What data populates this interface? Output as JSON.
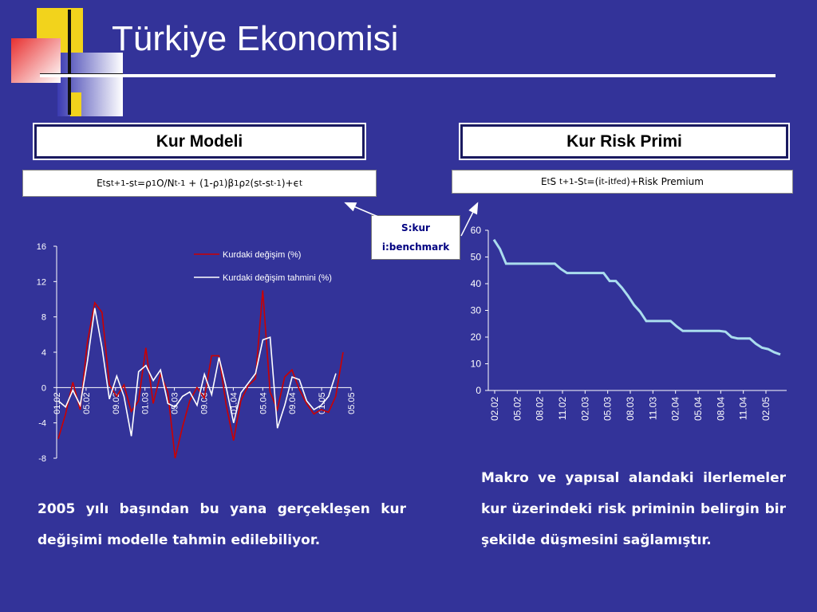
{
  "title": "Türkiye Ekonomisi",
  "left_box": {
    "label": "Kur Modeli"
  },
  "right_box": {
    "label": "Kur Risk Primi"
  },
  "note": {
    "line1": "S:kur",
    "line2": "i:benchmark"
  },
  "left_text": "2005 yılı başından bu yana gerçekleşen kur değişimi modelle tahmin edilebiliyor.",
  "right_text": "Makro ve yapısal alandaki ilerlemeler kur üzerindeki risk priminin belirgin bir şekilde düşmesini sağlamıştır.",
  "chart_data": [
    {
      "type": "line",
      "ylim": [
        -8,
        16
      ],
      "yticks": [
        -8,
        -4,
        0,
        4,
        8,
        12,
        16
      ],
      "x_tick_labels": [
        "01.02",
        "05.02",
        "09.02",
        "01.03",
        "05.03",
        "09.03",
        "01.04",
        "05.04",
        "09.04",
        "01.05",
        "05.05"
      ],
      "legend_position": "top-right",
      "series": [
        {
          "name": "Kurdaki değişim (%)",
          "color": "#cc0000",
          "values": [
            -5.8,
            -3.0,
            0.6,
            -2.5,
            5.2,
            9.6,
            8.5,
            0.3,
            -1.0,
            0.3,
            -2.7,
            -1.5,
            4.5,
            -1.8,
            1.5,
            -0.5,
            -8.0,
            -4.5,
            -1.5,
            0.0,
            -1.2,
            3.6,
            3.6,
            -2.0,
            -6.0,
            -1.5,
            0.2,
            1.0,
            11.0,
            -0.5,
            -2.5,
            1.2,
            2.0,
            -0.2,
            -1.8,
            -3.0,
            -2.5,
            -2.8,
            -1.0,
            4.0
          ]
        },
        {
          "name": "Kurdaki değişim tahmini (%)",
          "color": "#ffffff",
          "values": [
            -1.5,
            -2.2,
            -0.3,
            -2.0,
            3.0,
            9.0,
            4.5,
            -1.3,
            1.3,
            -1.0,
            -5.5,
            1.8,
            2.5,
            0.8,
            2.0,
            -1.8,
            -2.2,
            -1.0,
            -0.5,
            -2.0,
            1.5,
            -0.8,
            3.4,
            0.0,
            -4.0,
            -0.6,
            0.5,
            1.6,
            5.4,
            5.7,
            -4.6,
            -2.0,
            1.2,
            0.9,
            -1.5,
            -2.5,
            -2.0,
            -1.0,
            1.6
          ]
        }
      ]
    },
    {
      "type": "line",
      "ylim": [
        0,
        60
      ],
      "yticks": [
        0,
        10,
        20,
        30,
        40,
        50,
        60
      ],
      "x_tick_labels": [
        "02.02",
        "05.02",
        "08.02",
        "11.02",
        "02.03",
        "05.03",
        "08.03",
        "11.03",
        "02.04",
        "05.04",
        "08.04",
        "11.04",
        "02.05"
      ],
      "series": [
        {
          "color": "#aaddee",
          "values": [
            56.5,
            53.0,
            47.5,
            47.5,
            47.5,
            47.5,
            47.5,
            47.5,
            47.5,
            47.5,
            47.5,
            45.5,
            44.0,
            44.0,
            44.0,
            44.0,
            44.0,
            44.0,
            44.0,
            41.0,
            41.0,
            38.5,
            35.5,
            32.0,
            29.5,
            26.0,
            26.0,
            26.0,
            26.0,
            26.0,
            24.0,
            22.3,
            22.3,
            22.3,
            22.3,
            22.3,
            22.3,
            22.3,
            22.0,
            20.0,
            19.5,
            19.5,
            19.5,
            17.5,
            16.0,
            15.5,
            14.3,
            13.5
          ]
        }
      ]
    }
  ]
}
